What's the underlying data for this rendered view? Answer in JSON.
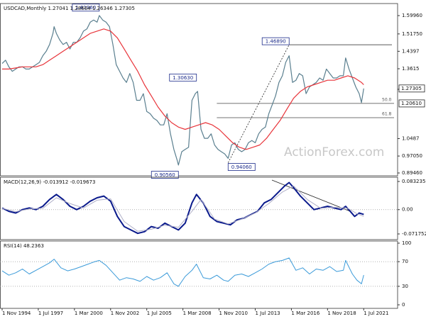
{
  "chart_data": [
    {
      "type": "line",
      "title": "USDCAD,Monthly  1.27041 1.28664 1.26346 1.27305",
      "xlim": [
        0,
        350
      ],
      "ylim": [
        0.8946,
        1.5996
      ],
      "grid": false,
      "yticks": [
        {
          "value": 1.5996,
          "label": "1.59960"
        },
        {
          "value": 1.5175,
          "label": "1.51750"
        },
        1.4397,
        1.3615,
        1.2693,
        1.0487,
        {
          "value": 0.9705,
          "label": "0.97050"
        },
        {
          "value": 0.8946,
          "label": "0.89460"
        }
      ],
      "series": [
        {
          "color": "#5a7f8f",
          "x": [
            0,
            3,
            6,
            9,
            12,
            15,
            18,
            21,
            24,
            27,
            30,
            33,
            36,
            39,
            42,
            45,
            46,
            48,
            51,
            54,
            57,
            60,
            63,
            66,
            69,
            72,
            75,
            78,
            81,
            84,
            86,
            89,
            92,
            95,
            98,
            101,
            104,
            107,
            110,
            113,
            116,
            119,
            122,
            125,
            128,
            131,
            134,
            137,
            140,
            143,
            146,
            149,
            152,
            155,
            156,
            159,
            162,
            165,
            168,
            171,
            173,
            176,
            179,
            182,
            185,
            188,
            191,
            194,
            197,
            200,
            203,
            206,
            209,
            212,
            215,
            218,
            221,
            224,
            227,
            230,
            233,
            236,
            239,
            242,
            245,
            248,
            251,
            254,
            257,
            260,
            263,
            266,
            269,
            272,
            275,
            278,
            281,
            284,
            287,
            290,
            293,
            296,
            299,
            302,
            304,
            307,
            310,
            313,
            316,
            318,
            320
          ],
          "values": [
            1.385,
            1.4,
            1.37,
            1.35,
            1.36,
            1.37,
            1.37,
            1.36,
            1.36,
            1.37,
            1.38,
            1.39,
            1.42,
            1.44,
            1.47,
            1.52,
            1.55,
            1.52,
            1.49,
            1.47,
            1.48,
            1.45,
            1.48,
            1.48,
            1.5,
            1.53,
            1.54,
            1.57,
            1.58,
            1.57,
            1.6,
            1.58,
            1.57,
            1.55,
            1.47,
            1.38,
            1.35,
            1.32,
            1.3,
            1.34,
            1.3,
            1.22,
            1.22,
            1.25,
            1.17,
            1.16,
            1.14,
            1.13,
            1.11,
            1.11,
            1.16,
            1.07,
            1.0,
            0.95,
            0.93,
            0.99,
            1.0,
            1.01,
            1.22,
            1.25,
            1.26,
            1.09,
            1.05,
            1.05,
            1.07,
            1.02,
            1.0,
            0.99,
            0.98,
            0.96,
            1.02,
            1.03,
            1.0,
            0.99,
            1.0,
            1.03,
            1.04,
            1.03,
            1.07,
            1.09,
            1.1,
            1.16,
            1.2,
            1.24,
            1.3,
            1.33,
            1.39,
            1.42,
            1.3,
            1.31,
            1.34,
            1.33,
            1.25,
            1.28,
            1.29,
            1.3,
            1.32,
            1.31,
            1.36,
            1.34,
            1.32,
            1.32,
            1.33,
            1.33,
            1.41,
            1.36,
            1.32,
            1.28,
            1.25,
            1.21,
            1.27305
          ]
        },
        {
          "color": "#e8343a",
          "x": [
            0,
            6,
            12,
            18,
            24,
            30,
            36,
            42,
            48,
            54,
            60,
            66,
            72,
            78,
            84,
            90,
            96,
            102,
            108,
            114,
            120,
            126,
            132,
            138,
            144,
            150,
            156,
            162,
            168,
            174,
            180,
            186,
            192,
            198,
            204,
            210,
            216,
            222,
            228,
            234,
            240,
            246,
            252,
            258,
            264,
            270,
            276,
            282,
            288,
            294,
            300,
            306,
            312,
            318,
            320
          ],
          "values": [
            1.36,
            1.36,
            1.365,
            1.37,
            1.37,
            1.37,
            1.38,
            1.4,
            1.42,
            1.44,
            1.46,
            1.48,
            1.5,
            1.52,
            1.53,
            1.54,
            1.53,
            1.5,
            1.45,
            1.4,
            1.35,
            1.29,
            1.24,
            1.19,
            1.15,
            1.12,
            1.1,
            1.09,
            1.1,
            1.11,
            1.12,
            1.11,
            1.09,
            1.06,
            1.03,
            1.01,
            1.0,
            1.01,
            1.02,
            1.05,
            1.09,
            1.13,
            1.18,
            1.23,
            1.26,
            1.28,
            1.29,
            1.3,
            1.31,
            1.31,
            1.32,
            1.33,
            1.32,
            1.3,
            1.29
          ]
        }
      ],
      "annotations": [
        {
          "label": "1.61960",
          "x": 86,
          "value": 1.6196
        },
        {
          "label": "1.30630",
          "x": 172,
          "value": 1.3063
        },
        {
          "label": "0.90560",
          "x": 156,
          "value": 0.9056
        },
        {
          "label": "0.94060",
          "x": 200,
          "value": 0.9406
        },
        {
          "label": "1.46890",
          "x": 254,
          "value": 1.4689
        }
      ],
      "levels": [
        {
          "label": "50.0",
          "value": 1.2061
        },
        {
          "label": "61.8",
          "value": 1.1424
        }
      ],
      "price_labels": [
        {
          "label": "1.27305",
          "value": 1.27305
        },
        {
          "label": "1.20610",
          "value": 1.2061
        }
      ],
      "watermark": "ActionForex.com"
    },
    {
      "type": "line",
      "title": "MACD(12,26,9) -0.013912 -0.019673",
      "xlim": [
        0,
        350
      ],
      "ylim": [
        -0.071752,
        0.083235
      ],
      "grid": true,
      "yticks": [
        0.083235,
        {
          "value": 0,
          "label": "0.00"
        },
        -0.071752
      ],
      "series": [
        {
          "color": "#0a1a8c",
          "width": 2,
          "x": [
            0,
            6,
            12,
            18,
            24,
            30,
            36,
            42,
            48,
            54,
            60,
            66,
            72,
            78,
            84,
            90,
            96,
            102,
            108,
            114,
            120,
            126,
            132,
            138,
            144,
            150,
            156,
            162,
            168,
            172,
            178,
            184,
            190,
            196,
            202,
            208,
            214,
            220,
            226,
            232,
            238,
            244,
            250,
            254,
            258,
            264,
            270,
            276,
            282,
            288,
            294,
            300,
            304,
            308,
            312,
            316,
            320
          ],
          "values": [
            0.005,
            -0.005,
            -0.01,
            0.0,
            0.005,
            0.0,
            0.01,
            0.03,
            0.045,
            0.03,
            0.01,
            0.0,
            0.01,
            0.025,
            0.035,
            0.04,
            0.025,
            -0.02,
            -0.05,
            -0.06,
            -0.07,
            -0.065,
            -0.05,
            -0.055,
            -0.04,
            -0.05,
            -0.06,
            -0.04,
            0.02,
            0.045,
            0.02,
            -0.02,
            -0.035,
            -0.04,
            -0.045,
            -0.03,
            -0.025,
            -0.015,
            -0.005,
            0.02,
            0.03,
            0.05,
            0.07,
            0.08,
            0.065,
            0.04,
            0.02,
            0.0,
            0.005,
            0.01,
            0.005,
            0.0,
            0.01,
            -0.005,
            -0.02,
            -0.01,
            -0.013912
          ]
        },
        {
          "color": "#b0b0c8",
          "width": 1,
          "x": [
            0,
            12,
            24,
            36,
            48,
            60,
            72,
            84,
            96,
            108,
            120,
            132,
            144,
            156,
            168,
            176,
            188,
            200,
            212,
            224,
            236,
            248,
            258,
            270,
            282,
            294,
            306,
            314,
            320
          ],
          "values": [
            0.004,
            -0.006,
            0.002,
            0.004,
            0.035,
            0.018,
            0.005,
            0.028,
            0.032,
            -0.035,
            -0.064,
            -0.058,
            -0.046,
            -0.052,
            -0.005,
            0.03,
            -0.028,
            -0.042,
            -0.028,
            -0.01,
            0.018,
            0.052,
            0.07,
            0.03,
            0.004,
            0.007,
            0.004,
            -0.012,
            -0.019673
          ]
        }
      ]
    },
    {
      "type": "line",
      "title": "RSI(14) 48.2363",
      "xlim": [
        0,
        350
      ],
      "ylim": [
        0,
        100
      ],
      "grid": true,
      "yticks": [
        100,
        70,
        30,
        0
      ],
      "xticks": [
        {
          "value": 0,
          "label": "1 Nov 1994"
        },
        {
          "value": 32,
          "label": "1 Jul 1997"
        },
        {
          "value": 64,
          "label": "1 Mar 2000"
        },
        {
          "value": 96,
          "label": "1 Nov 2002"
        },
        {
          "value": 128,
          "label": "1 Jul 2005"
        },
        {
          "value": 160,
          "label": "1 Mar 2008"
        },
        {
          "value": 192,
          "label": "1 Nov 2010"
        },
        {
          "value": 224,
          "label": "1 Jul 2013"
        },
        {
          "value": 256,
          "label": "1 Mar 2016"
        },
        {
          "value": 288,
          "label": "1 Nov 2018"
        },
        {
          "value": 320,
          "label": "1 Jul 2021"
        }
      ],
      "series": [
        {
          "color": "#3a9ad9",
          "width": 1,
          "x": [
            0,
            6,
            12,
            18,
            24,
            30,
            36,
            42,
            46,
            52,
            58,
            64,
            70,
            76,
            82,
            86,
            92,
            98,
            104,
            110,
            116,
            122,
            128,
            134,
            140,
            146,
            152,
            156,
            162,
            168,
            172,
            178,
            184,
            190,
            196,
            200,
            206,
            212,
            218,
            224,
            230,
            236,
            242,
            248,
            254,
            260,
            266,
            272,
            278,
            284,
            290,
            296,
            302,
            304,
            310,
            314,
            318,
            320
          ],
          "values": [
            55,
            48,
            52,
            58,
            50,
            56,
            62,
            68,
            74,
            60,
            55,
            58,
            62,
            66,
            70,
            72,
            64,
            52,
            40,
            44,
            42,
            38,
            46,
            40,
            44,
            52,
            34,
            30,
            46,
            56,
            66,
            44,
            42,
            48,
            40,
            38,
            48,
            50,
            46,
            52,
            58,
            66,
            70,
            72,
            76,
            56,
            60,
            50,
            58,
            56,
            62,
            54,
            56,
            72,
            50,
            40,
            34,
            48.2363
          ]
        }
      ]
    }
  ]
}
